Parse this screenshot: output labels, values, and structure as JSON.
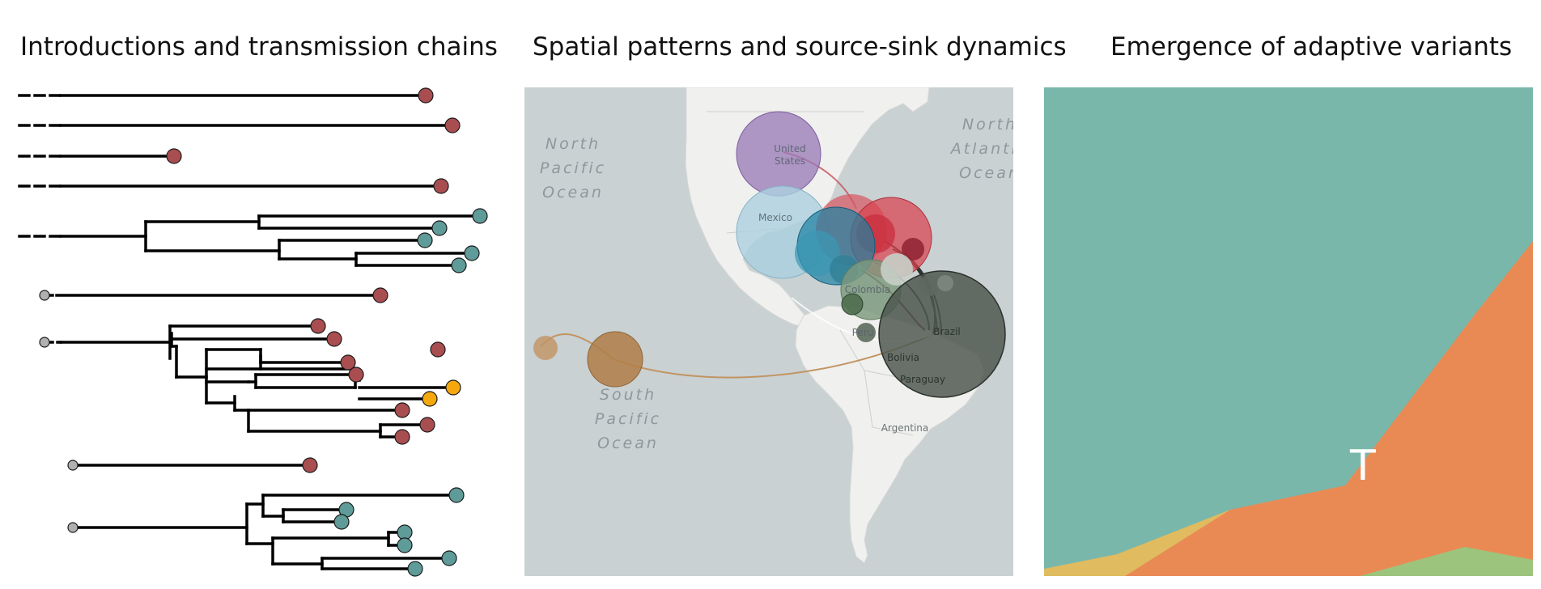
{
  "panels": {
    "phylogeny": {
      "title": "Introductions and transmission chains"
    },
    "map": {
      "title": "Spatial patterns and source-sink dynamics"
    },
    "variants": {
      "title": "Emergence of adaptive variants"
    }
  },
  "map_labels": {
    "north_pacific": [
      "North",
      "Pacific",
      "Ocean"
    ],
    "north_atlantic": [
      "North",
      "Atlantic",
      "Ocean"
    ],
    "south_pacific": [
      "South",
      "Pacific",
      "Ocean"
    ],
    "united_states": [
      "United",
      "States"
    ],
    "mexico": "Mexico",
    "colombia": "Colombia",
    "peru": "Peru",
    "brazil": "Brazil",
    "bolivia": "Bolivia",
    "paraguay": "Paraguay",
    "argentina": "Argentina"
  },
  "area_overlay_text": "T",
  "colors": {
    "tip_red": "#a94e50",
    "tip_teal": "#5f9b98",
    "tip_gold": "#f5a80e",
    "tip_grey": "#b0b0b0",
    "map_water": "#c9d1d3",
    "map_land": "#f0f0ee",
    "variant_teal": "#79b7ab",
    "variant_orange": "#e98a55",
    "variant_yellow": "#e0bb5f",
    "variant_green": "#9cc47c"
  }
}
